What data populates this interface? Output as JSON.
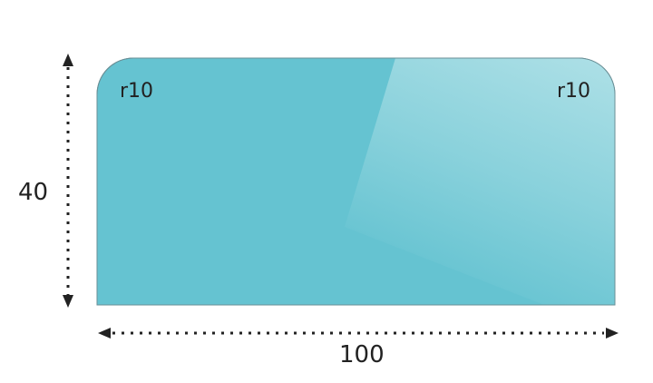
{
  "shape": {
    "fill_color": "#65c3d1",
    "highlight_color": "#b3e2e8",
    "corner_left_label": "r10",
    "corner_right_label": "r10"
  },
  "dimensions": {
    "height_label": "40",
    "width_label": "100"
  }
}
